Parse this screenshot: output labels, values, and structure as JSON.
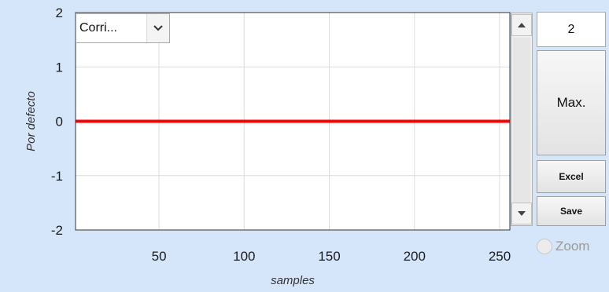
{
  "plot": {
    "ylabel": "Por defecto",
    "xlabel": "samples",
    "series_selector_value": "Corri...",
    "colors": {
      "series": "#ff0000",
      "grid": "#dcdcdc",
      "axes": "#333333",
      "background": "#ffffff"
    }
  },
  "chart_data": {
    "type": "line",
    "xlabel": "samples",
    "ylabel": "Por defecto",
    "xlim": [
      1,
      256
    ],
    "ylim": [
      -2,
      2
    ],
    "xticks": [
      50,
      100,
      150,
      200,
      250
    ],
    "xtick_labels": [
      "50",
      "100",
      "150",
      "200",
      "250"
    ],
    "yticks": [
      -2,
      -1,
      0,
      1,
      2
    ],
    "ytick_labels": [
      "-2",
      "-1",
      "0",
      "1",
      "2"
    ],
    "grid": true,
    "series": [
      {
        "color": "#ff0000",
        "x": [
          1,
          256
        ],
        "y": [
          0,
          0
        ]
      }
    ]
  },
  "controls": {
    "scale_value": "2",
    "max_label": "Max.",
    "excel_label": "Excel",
    "save_label": "Save",
    "zoom_label": "Zoom",
    "zoom_checked": false
  },
  "icons": {
    "select_arrow": "chevron-down-icon",
    "scroll_up": "arrow-up-icon",
    "scroll_down": "arrow-down-icon"
  }
}
